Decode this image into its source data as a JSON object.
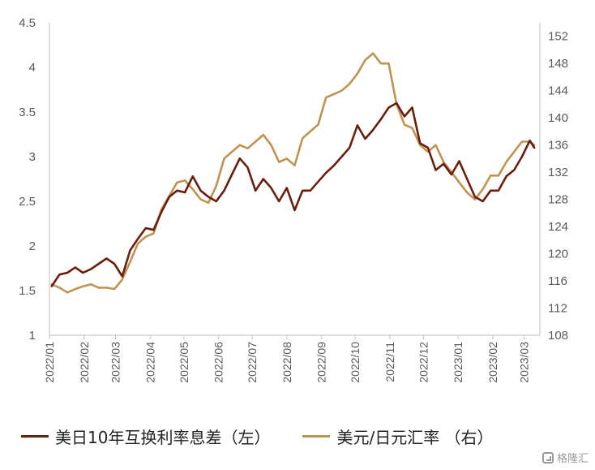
{
  "chart_data": {
    "type": "line",
    "title": "",
    "xlabel": "",
    "ylabel_left": "",
    "ylabel_right": "",
    "categories": [
      "2022/01",
      "2022/02",
      "2022/03",
      "2022/04",
      "2022/05",
      "2022/06",
      "2022/07",
      "2022/08",
      "2022/09",
      "2022/10",
      "2022/11",
      "2022/12",
      "2023/01",
      "2023/02",
      "2023/03"
    ],
    "y_left": {
      "min": 1,
      "max": 4.5,
      "ticks": [
        "1",
        "1.5",
        "2",
        "2.5",
        "3",
        "3.5",
        "4",
        "4.5"
      ]
    },
    "y_right": {
      "min": 108,
      "max": 154,
      "ticks": [
        "108",
        "112",
        "116",
        "120",
        "124",
        "128",
        "132",
        "136",
        "140",
        "144",
        "148",
        "152"
      ]
    },
    "grid": false,
    "legend_position": "bottom",
    "series": [
      {
        "name": "美日10年互换利率息差（左）",
        "axis": "left",
        "color": "#6b1d0c",
        "x": [
          "2022/01/03",
          "2022/01/10",
          "2022/01/17",
          "2022/01/24",
          "2022/01/31",
          "2022/02/07",
          "2022/02/14",
          "2022/02/21",
          "2022/02/28",
          "2022/03/07",
          "2022/03/14",
          "2022/03/21",
          "2022/03/28",
          "2022/04/04",
          "2022/04/11",
          "2022/04/18",
          "2022/04/25",
          "2022/05/02",
          "2022/05/09",
          "2022/05/16",
          "2022/05/23",
          "2022/05/30",
          "2022/06/06",
          "2022/06/13",
          "2022/06/20",
          "2022/06/27",
          "2022/07/04",
          "2022/07/11",
          "2022/07/18",
          "2022/07/25",
          "2022/08/01",
          "2022/08/08",
          "2022/08/15",
          "2022/08/22",
          "2022/08/29",
          "2022/09/05",
          "2022/09/12",
          "2022/09/19",
          "2022/09/26",
          "2022/10/03",
          "2022/10/10",
          "2022/10/17",
          "2022/10/24",
          "2022/10/31",
          "2022/11/07",
          "2022/11/14",
          "2022/11/21",
          "2022/11/28",
          "2022/12/05",
          "2022/12/12",
          "2022/12/19",
          "2022/12/26",
          "2023/01/02",
          "2023/01/09",
          "2023/01/16",
          "2023/01/23",
          "2023/01/30",
          "2023/02/06",
          "2023/02/13",
          "2023/02/20",
          "2023/02/27",
          "2023/03/06",
          "2023/03/10"
        ],
        "values": [
          1.55,
          1.68,
          1.7,
          1.76,
          1.7,
          1.74,
          1.8,
          1.86,
          1.8,
          1.66,
          1.95,
          2.08,
          2.2,
          2.18,
          2.38,
          2.55,
          2.62,
          2.6,
          2.78,
          2.62,
          2.55,
          2.5,
          2.62,
          2.8,
          2.98,
          2.88,
          2.62,
          2.75,
          2.65,
          2.5,
          2.65,
          2.4,
          2.62,
          2.62,
          2.72,
          2.82,
          2.9,
          3.0,
          3.1,
          3.35,
          3.2,
          3.3,
          3.42,
          3.55,
          3.6,
          3.45,
          3.55,
          3.15,
          3.1,
          2.85,
          2.92,
          2.8,
          2.95,
          2.75,
          2.55,
          2.5,
          2.62,
          2.62,
          2.78,
          2.85,
          3.0,
          3.18,
          3.1
        ]
      },
      {
        "name": "美元/日元汇率 （右）",
        "axis": "right",
        "color": "#bf9350",
        "x": [
          "2022/01/03",
          "2022/01/10",
          "2022/01/17",
          "2022/01/24",
          "2022/01/31",
          "2022/02/07",
          "2022/02/14",
          "2022/02/21",
          "2022/02/28",
          "2022/03/07",
          "2022/03/14",
          "2022/03/21",
          "2022/03/28",
          "2022/04/04",
          "2022/04/11",
          "2022/04/18",
          "2022/04/25",
          "2022/05/02",
          "2022/05/09",
          "2022/05/16",
          "2022/05/23",
          "2022/05/30",
          "2022/06/06",
          "2022/06/13",
          "2022/06/20",
          "2022/06/27",
          "2022/07/04",
          "2022/07/11",
          "2022/07/18",
          "2022/07/25",
          "2022/08/01",
          "2022/08/08",
          "2022/08/15",
          "2022/08/22",
          "2022/08/29",
          "2022/09/05",
          "2022/09/12",
          "2022/09/19",
          "2022/09/26",
          "2022/10/03",
          "2022/10/10",
          "2022/10/17",
          "2022/10/24",
          "2022/10/31",
          "2022/11/07",
          "2022/11/14",
          "2022/11/21",
          "2022/11/28",
          "2022/12/05",
          "2022/12/12",
          "2022/12/19",
          "2022/12/26",
          "2023/01/02",
          "2023/01/09",
          "2023/01/16",
          "2023/01/23",
          "2023/01/30",
          "2023/02/06",
          "2023/02/13",
          "2023/02/20",
          "2023/02/27",
          "2023/03/06",
          "2023/03/10"
        ],
        "values": [
          115.5,
          115.0,
          114.3,
          114.8,
          115.2,
          115.5,
          115.0,
          115.0,
          114.8,
          116.2,
          118.8,
          121.5,
          122.5,
          123.0,
          126.5,
          128.5,
          130.5,
          130.8,
          129.5,
          128.0,
          127.5,
          130.0,
          134.0,
          135.0,
          136.0,
          135.5,
          136.5,
          137.5,
          136.0,
          133.5,
          134.0,
          133.0,
          137.0,
          138.0,
          139.0,
          143.0,
          143.5,
          144.0,
          145.0,
          146.5,
          148.5,
          149.5,
          148.0,
          148.0,
          142.0,
          139.0,
          138.5,
          136.0,
          135.0,
          136.0,
          133.5,
          132.0,
          130.5,
          129.0,
          128.0,
          129.5,
          131.5,
          131.5,
          133.5,
          135.0,
          136.5,
          136.5,
          136.0
        ]
      }
    ]
  },
  "watermark": {
    "text": "格隆汇"
  }
}
